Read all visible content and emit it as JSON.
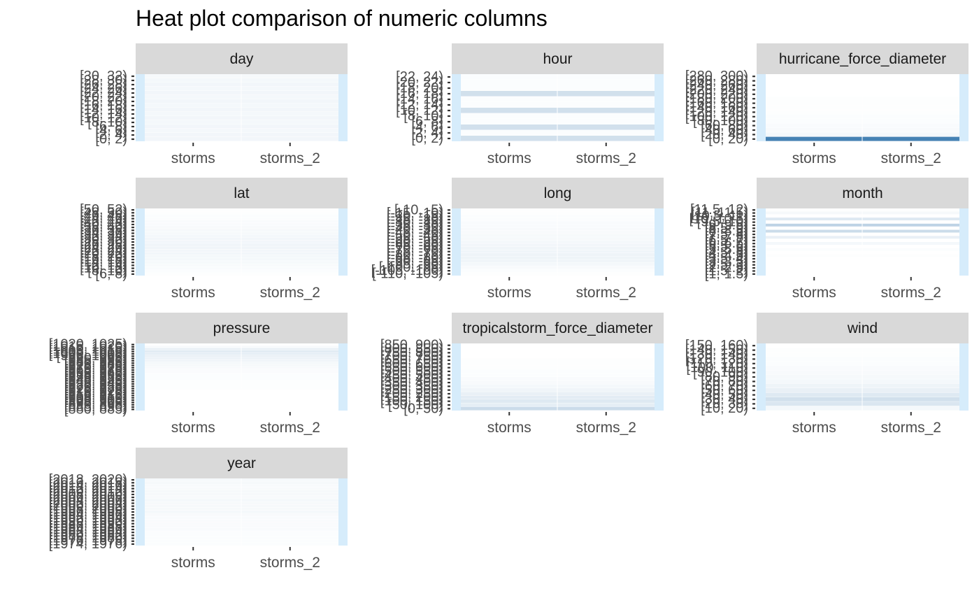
{
  "title": "Heat plot comparison of numeric columns",
  "colors": {
    "strip_bg": "#d9d9d9",
    "panel_bg": "#ffffff",
    "edge_fill": "#d6ecfb",
    "scale_low": "#ffffff",
    "scale_high": "#4682b4",
    "tick": "#333333"
  },
  "chart_data": {
    "type": "heatmap",
    "title": "Heat plot comparison of numeric columns",
    "x_categories": [
      "storms",
      "storms_2"
    ],
    "facets": [
      {
        "name": "day",
        "bins": [
          "[0, 2)",
          "[2, 4)",
          "[4, 6)",
          "[6, 8)",
          "[8, 10)",
          "[10, 12)",
          "[12, 14)",
          "[14, 16)",
          "[16, 18)",
          "[18, 20)",
          "[20, 22)",
          "[22, 24)",
          "[24, 26)",
          "[26, 28)",
          "[28, 30)",
          "[30, 32)"
        ],
        "values": [
          0.07,
          0.07,
          0.06,
          0.07,
          0.06,
          0.07,
          0.06,
          0.07,
          0.06,
          0.07,
          0.06,
          0.07,
          0.06,
          0.07,
          0.06,
          0.05
        ]
      },
      {
        "name": "hour",
        "bins": [
          "[0, 2)",
          "[2, 4)",
          "[4, 6)",
          "[6, 8)",
          "[8, 10)",
          "[10, 12)",
          "[12, 14)",
          "[14, 16)",
          "[16, 18)",
          "[18, 20)",
          "[20, 22)",
          "[22, 24)"
        ],
        "values": [
          0.25,
          0.02,
          0.25,
          0.02,
          0.02,
          0.25,
          0.02,
          0.02,
          0.25,
          0.02,
          0.02,
          0.02
        ]
      },
      {
        "name": "hurricane_force_diameter",
        "bins": [
          "[0, 20)",
          "[20, 40)",
          "[40, 60)",
          "[60, 80)",
          "[80, 100)",
          "[100, 120)",
          "[120, 140)",
          "[140, 160)",
          "[160, 180)",
          "[180, 200)",
          "[200, 220)",
          "[220, 240)",
          "[240, 260)",
          "[260, 280)",
          "[280, 300)"
        ],
        "values": [
          1.0,
          0.06,
          0.04,
          0.03,
          0.02,
          0.02,
          0.01,
          0.01,
          0.01,
          0.01,
          0.0,
          0.0,
          0.0,
          0.0,
          0.0
        ]
      },
      {
        "name": "lat",
        "bins": [
          "[6, 8)",
          "[8, 10)",
          "[10, 12)",
          "[12, 14)",
          "[14, 16)",
          "[16, 18)",
          "[18, 20)",
          "[20, 22)",
          "[22, 24)",
          "[24, 26)",
          "[26, 28)",
          "[28, 30)",
          "[30, 32)",
          "[32, 34)",
          "[34, 36)",
          "[36, 38)",
          "[38, 40)",
          "[40, 42)",
          "[42, 44)",
          "[44, 46)",
          "[46, 48)",
          "[48, 50)",
          "[50, 52)"
        ],
        "values": [
          0.01,
          0.02,
          0.03,
          0.04,
          0.05,
          0.06,
          0.06,
          0.07,
          0.07,
          0.08,
          0.08,
          0.07,
          0.07,
          0.06,
          0.05,
          0.05,
          0.04,
          0.03,
          0.03,
          0.02,
          0.02,
          0.01,
          0.01
        ]
      },
      {
        "name": "long",
        "bins": [
          "[-110, -105)",
          "[-105, -100)",
          "[-100, -95)",
          "[-95, -90)",
          "[-90, -85)",
          "[-85, -80)",
          "[-80, -75)",
          "[-75, -70)",
          "[-70, -65)",
          "[-65, -60)",
          "[-60, -55)",
          "[-55, -50)",
          "[-50, -45)",
          "[-45, -40)",
          "[-40, -35)",
          "[-35, -30)",
          "[-30, -25)",
          "[-25, -20)",
          "[-20, -15)",
          "[-15, -10)",
          "[-10, -5)"
        ],
        "values": [
          0.01,
          0.02,
          0.04,
          0.06,
          0.08,
          0.09,
          0.09,
          0.08,
          0.08,
          0.07,
          0.06,
          0.05,
          0.05,
          0.04,
          0.04,
          0.03,
          0.03,
          0.02,
          0.02,
          0.01,
          0.01
        ]
      },
      {
        "name": "month",
        "bins": [
          "[1, 1.5)",
          "[1.5, 2)",
          "[2, 2.5)",
          "[2.5, 3)",
          "[3, 3.5)",
          "[3.5, 4)",
          "[4, 4.5)",
          "[4.5, 5)",
          "[5, 5.5)",
          "[5.5, 6)",
          "[6, 6.5)",
          "[6.5, 7)",
          "[7, 7.5)",
          "[7.5, 8)",
          "[8, 8.5)",
          "[8.5, 9)",
          "[9, 9.5)",
          "[9.5, 10)",
          "[10, 10.5)",
          "[10.5, 11)",
          "[11, 11.5)",
          "[11.5, 12)"
        ],
        "values": [
          0.0,
          0.0,
          0.0,
          0.0,
          0.0,
          0.0,
          0.01,
          0.0,
          0.02,
          0.0,
          0.06,
          0.0,
          0.12,
          0.0,
          0.28,
          0.0,
          0.35,
          0.0,
          0.18,
          0.0,
          0.05,
          0.01
        ]
      },
      {
        "name": "pressure",
        "bins": [
          "[880, 885)",
          "[885, 890)",
          "[890, 895)",
          "[895, 900)",
          "[900, 905)",
          "[905, 910)",
          "[910, 915)",
          "[915, 920)",
          "[920, 925)",
          "[925, 930)",
          "[930, 935)",
          "[935, 940)",
          "[940, 945)",
          "[945, 950)",
          "[950, 955)",
          "[955, 960)",
          "[960, 965)",
          "[965, 970)",
          "[970, 975)",
          "[975, 980)",
          "[980, 985)",
          "[985, 990)",
          "[990, 995)",
          "[995, 1000)",
          "[1000, 1005)",
          "[1005, 1010)",
          "[1010, 1015)",
          "[1015, 1020)",
          "[1020, 1025)"
        ],
        "values": [
          0.0,
          0.0,
          0.0,
          0.0,
          0.0,
          0.0,
          0.0,
          0.0,
          0.0,
          0.01,
          0.01,
          0.01,
          0.01,
          0.02,
          0.02,
          0.02,
          0.03,
          0.03,
          0.04,
          0.05,
          0.06,
          0.08,
          0.1,
          0.12,
          0.14,
          0.16,
          0.12,
          0.04,
          0.01
        ]
      },
      {
        "name": "tropicalstorm_force_diameter",
        "bins": [
          "[0, 50)",
          "[50, 100)",
          "[100, 150)",
          "[150, 200)",
          "[200, 250)",
          "[250, 300)",
          "[300, 350)",
          "[350, 400)",
          "[400, 450)",
          "[450, 500)",
          "[500, 550)",
          "[550, 600)",
          "[600, 650)",
          "[650, 700)",
          "[700, 750)",
          "[750, 800)",
          "[800, 850)",
          "[850, 900)"
        ],
        "values": [
          0.28,
          0.14,
          0.18,
          0.15,
          0.12,
          0.08,
          0.06,
          0.04,
          0.03,
          0.02,
          0.02,
          0.01,
          0.01,
          0.01,
          0.0,
          0.0,
          0.0,
          0.0
        ]
      },
      {
        "name": "wind",
        "bins": [
          "[10, 20)",
          "[20, 30)",
          "[30, 40)",
          "[40, 50)",
          "[50, 60)",
          "[60, 70)",
          "[70, 80)",
          "[80, 90)",
          "[90, 100)",
          "[100, 110)",
          "[110, 120)",
          "[120, 130)",
          "[130, 140)",
          "[140, 150)",
          "[150, 160)"
        ],
        "values": [
          0.06,
          0.2,
          0.25,
          0.18,
          0.12,
          0.09,
          0.06,
          0.05,
          0.04,
          0.03,
          0.02,
          0.02,
          0.01,
          0.01,
          0.0
        ]
      },
      {
        "name": "year",
        "bins": [
          "[1974, 1976)",
          "[1976, 1978)",
          "[1978, 1980)",
          "[1980, 1982)",
          "[1982, 1984)",
          "[1984, 1986)",
          "[1986, 1988)",
          "[1988, 1990)",
          "[1990, 1992)",
          "[1992, 1994)",
          "[1994, 1996)",
          "[1996, 1998)",
          "[1998, 2000)",
          "[2000, 2002)",
          "[2002, 2004)",
          "[2004, 2006)",
          "[2006, 2008)",
          "[2008, 2010)",
          "[2010, 2012)",
          "[2012, 2014)",
          "[2014, 2016)",
          "[2016, 2018)",
          "[2018, 2020)"
        ],
        "values": [
          0.02,
          0.02,
          0.02,
          0.02,
          0.02,
          0.03,
          0.03,
          0.03,
          0.03,
          0.03,
          0.04,
          0.06,
          0.05,
          0.05,
          0.05,
          0.06,
          0.04,
          0.05,
          0.05,
          0.04,
          0.04,
          0.05,
          0.05
        ]
      }
    ]
  }
}
